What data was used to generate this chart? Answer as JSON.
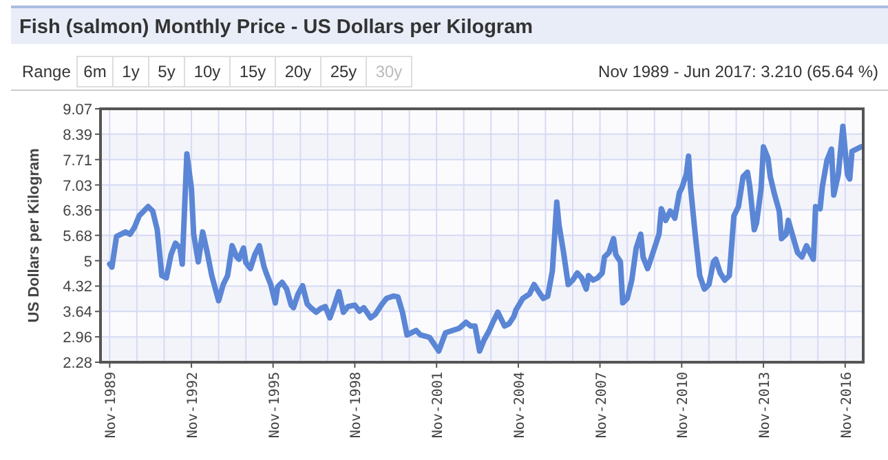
{
  "chart_data": {
    "type": "line",
    "title": "Fish (salmon) Monthly Price - US Dollars per Kilogram",
    "ylabel": "US Dollars per Kilogram",
    "annotations": [
      "Range",
      "6m",
      "1y",
      "5y",
      "10y",
      "15y",
      "20y",
      "25y",
      "30y",
      "Nov 1989 - Jun 2017: 3.210 (65.64 %)"
    ],
    "xlim": [
      "1989-07",
      "2017-07"
    ],
    "xticks": [
      {
        "value": "1989-11",
        "label": "Nov-1989"
      },
      {
        "value": "1990-11",
        "label": null
      },
      {
        "value": "1991-11",
        "label": null
      },
      {
        "value": "1992-11",
        "label": "Nov-1992"
      },
      {
        "value": "1993-11",
        "label": null
      },
      {
        "value": "1994-11",
        "label": null
      },
      {
        "value": "1995-11",
        "label": "Nov-1995"
      },
      {
        "value": "1996-11",
        "label": null
      },
      {
        "value": "1997-11",
        "label": null
      },
      {
        "value": "1998-11",
        "label": "Nov-1998"
      },
      {
        "value": "1999-11",
        "label": null
      },
      {
        "value": "2000-11",
        "label": null
      },
      {
        "value": "2001-11",
        "label": "Nov-2001"
      },
      {
        "value": "2002-11",
        "label": null
      },
      {
        "value": "2003-11",
        "label": null
      },
      {
        "value": "2004-11",
        "label": "Nov-2004"
      },
      {
        "value": "2005-11",
        "label": null
      },
      {
        "value": "2006-11",
        "label": null
      },
      {
        "value": "2007-11",
        "label": "Nov-2007"
      },
      {
        "value": "2008-11",
        "label": null
      },
      {
        "value": "2009-11",
        "label": null
      },
      {
        "value": "2010-11",
        "label": "Nov-2010"
      },
      {
        "value": "2011-11",
        "label": null
      },
      {
        "value": "2012-11",
        "label": null
      },
      {
        "value": "2013-11",
        "label": "Nov-2013"
      },
      {
        "value": "2014-11",
        "label": null
      },
      {
        "value": "2015-11",
        "label": null
      },
      {
        "value": "2016-11",
        "label": "Nov-2016"
      }
    ],
    "ylim": [
      2.28,
      9.07
    ],
    "yticks": [
      2.28,
      2.96,
      3.64,
      4.32,
      5,
      5.68,
      6.36,
      7.03,
      7.71,
      8.39,
      9.07
    ],
    "grid": true,
    "marker": "none",
    "line_style": "solid",
    "series": [
      {
        "color": "#5b86d6",
        "x": [
          "1989-11",
          "1989-12",
          "1990-02",
          "1990-06",
          "1990-08",
          "1990-10",
          "1990-12",
          "1991-02",
          "1991-04",
          "1991-06",
          "1991-08",
          "1991-10",
          "1991-12",
          "1992-02",
          "1992-04",
          "1992-06",
          "1992-07",
          "1992-09",
          "1992-11",
          "1992-12",
          "1993-02",
          "1993-04",
          "1993-06",
          "1993-08",
          "1993-11",
          "1994-01",
          "1994-03",
          "1994-05",
          "1994-07",
          "1994-08",
          "1994-10",
          "1994-11",
          "1995-01",
          "1995-03",
          "1995-05",
          "1995-07",
          "1995-08",
          "1995-10",
          "1995-12",
          "1996-01",
          "1996-03",
          "1996-05",
          "1996-07",
          "1996-08",
          "1996-10",
          "1996-12",
          "1997-02",
          "1997-04",
          "1997-06",
          "1997-08",
          "1997-10",
          "1997-12",
          "1998-02",
          "1998-04",
          "1998-06",
          "1998-08",
          "1998-11",
          "1999-01",
          "1999-03",
          "1999-06",
          "1999-08",
          "1999-11",
          "2000-01",
          "2000-04",
          "2000-06",
          "2000-08",
          "2000-10",
          "2000-12",
          "2001-02",
          "2001-04",
          "2001-06",
          "2001-08",
          "2001-10",
          "2001-12",
          "2002-03",
          "2002-06",
          "2002-09",
          "2002-12",
          "2003-02",
          "2003-04",
          "2003-06",
          "2003-08",
          "2003-10",
          "2003-12",
          "2004-02",
          "2004-05",
          "2004-07",
          "2004-09",
          "2004-10",
          "2005-01",
          "2005-04",
          "2005-06",
          "2005-08",
          "2005-10",
          "2005-12",
          "2006-02",
          "2006-04",
          "2006-05",
          "2006-07",
          "2006-09",
          "2006-11",
          "2007-01",
          "2007-03",
          "2007-05",
          "2007-06",
          "2007-08",
          "2007-10",
          "2007-12",
          "2008-01",
          "2008-03",
          "2008-05",
          "2008-06",
          "2008-08",
          "2008-09",
          "2008-11",
          "2009-01",
          "2009-03",
          "2009-05",
          "2009-06",
          "2009-08",
          "2009-09",
          "2009-11",
          "2010-01",
          "2010-02",
          "2010-04",
          "2010-06",
          "2010-08",
          "2010-10",
          "2010-11",
          "2011-01",
          "2011-02",
          "2011-03",
          "2011-05",
          "2011-07",
          "2011-09",
          "2011-11",
          "2012-01",
          "2012-02",
          "2012-04",
          "2012-06",
          "2012-08",
          "2012-10",
          "2012-12",
          "2013-02",
          "2013-04",
          "2013-05",
          "2013-07",
          "2013-08",
          "2013-10",
          "2013-11",
          "2014-01",
          "2014-02",
          "2014-04",
          "2014-06",
          "2014-07",
          "2014-09",
          "2014-10",
          "2014-12",
          "2015-02",
          "2015-04",
          "2015-06",
          "2015-09",
          "2015-10",
          "2015-12",
          "2016-01",
          "2016-03",
          "2016-05",
          "2016-06",
          "2016-08",
          "2016-10",
          "2016-12",
          "2017-01",
          "2017-02",
          "2017-06"
        ],
        "values": [
          4.91,
          4.83,
          5.65,
          5.77,
          5.71,
          5.9,
          6.2,
          6.33,
          6.45,
          6.33,
          5.83,
          4.6,
          4.54,
          5.16,
          5.47,
          5.34,
          4.91,
          7.86,
          6.94,
          5.71,
          4.97,
          5.77,
          5.22,
          4.6,
          3.93,
          4.36,
          4.6,
          5.4,
          5.1,
          5.04,
          5.34,
          4.95,
          4.79,
          5.16,
          5.4,
          4.85,
          4.67,
          4.36,
          3.87,
          4.3,
          4.42,
          4.24,
          3.81,
          3.74,
          4.11,
          4.33,
          3.84,
          3.72,
          3.62,
          3.72,
          3.77,
          3.47,
          3.81,
          4.17,
          3.62,
          3.77,
          3.81,
          3.65,
          3.74,
          3.47,
          3.56,
          3.84,
          3.99,
          4.05,
          4.03,
          3.62,
          3.01,
          3.07,
          3.13,
          3.01,
          2.98,
          2.94,
          2.76,
          2.58,
          3.07,
          3.13,
          3.19,
          3.35,
          3.25,
          3.25,
          2.58,
          2.88,
          3.1,
          3.37,
          3.62,
          3.25,
          3.31,
          3.5,
          3.68,
          3.99,
          4.11,
          4.36,
          4.17,
          3.99,
          4.05,
          4.73,
          6.57,
          5.96,
          5.22,
          4.36,
          4.48,
          4.67,
          4.54,
          4.24,
          4.6,
          4.48,
          4.54,
          4.67,
          5.1,
          5.22,
          5.59,
          5.16,
          4.97,
          3.87,
          3.99,
          4.48,
          5.34,
          5.71,
          5.1,
          4.79,
          4.97,
          5.34,
          5.71,
          6.39,
          6.08,
          6.33,
          6.14,
          6.82,
          6.94,
          7.31,
          7.8,
          6.94,
          5.71,
          4.6,
          4.24,
          4.36,
          4.97,
          5.04,
          4.67,
          4.48,
          4.6,
          6.2,
          6.45,
          7.25,
          7.37,
          7.0,
          5.83,
          6.02,
          6.94,
          8.05,
          7.74,
          7.25,
          6.76,
          6.33,
          5.59,
          5.71,
          6.08,
          5.65,
          5.22,
          5.1,
          5.4,
          5.04,
          6.45,
          6.39,
          7.0,
          7.68,
          7.99,
          6.76,
          7.31,
          8.6,
          7.31,
          7.19,
          7.93,
          8.05
        ]
      }
    ]
  }
}
